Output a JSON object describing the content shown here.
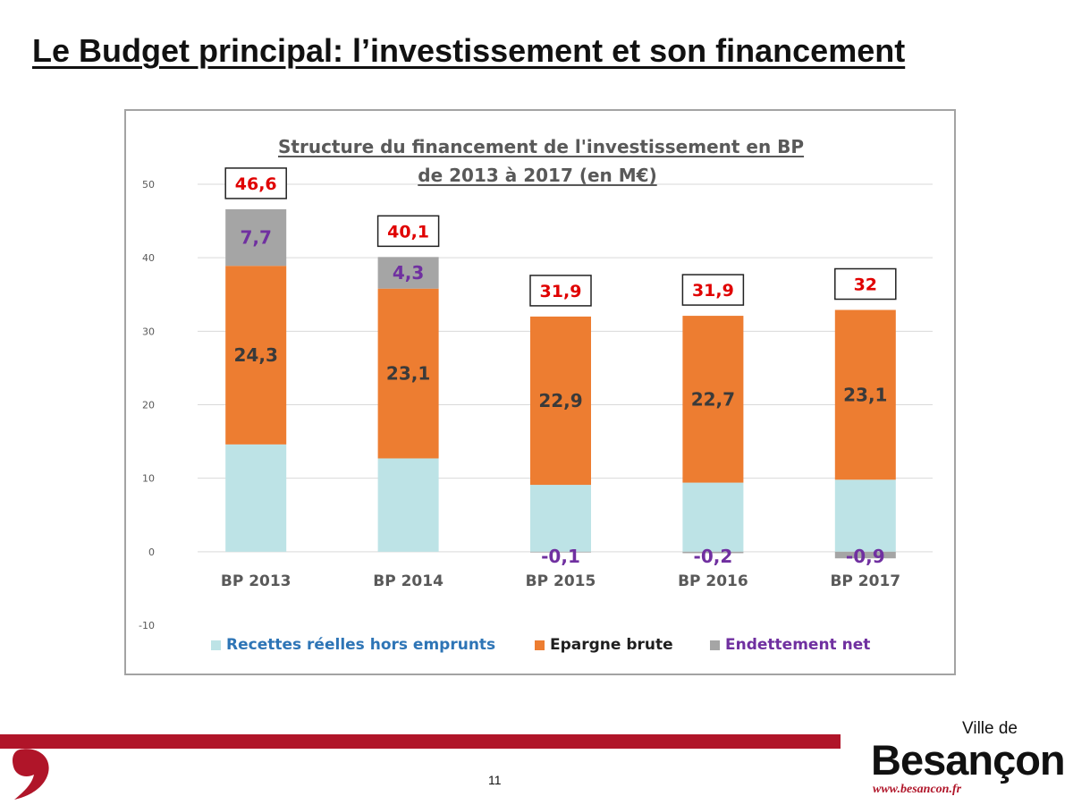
{
  "slide": {
    "title": "Le Budget principal: l’investissement et son financement",
    "page_number": "11"
  },
  "logo": {
    "small": "Ville de",
    "main": "Besançon",
    "url": "www.besancon.fr"
  },
  "colors": {
    "recettes": "#bde3e6",
    "epargne": "#ed7d31",
    "endettement": "#a5a5a5",
    "total_label": "#e00000",
    "endettement_label": "#7030a0",
    "recettes_legend": "#2e75b6",
    "gridline": "#d9d9d9",
    "brand_red": "#b01529"
  },
  "chart_data": {
    "type": "bar",
    "stacked": true,
    "title": "Structure du financement de l'investissement en BP",
    "subtitle": "de 2013 à 2017 (en M€)",
    "categories": [
      "BP 2013",
      "BP 2014",
      "BP 2015",
      "BP 2016",
      "BP 2017"
    ],
    "series": [
      {
        "name": "Recettes réelles hors emprunts",
        "values": [
          14.6,
          12.7,
          9.1,
          9.4,
          9.8
        ],
        "labels": [
          "",
          "",
          "",
          "",
          ""
        ]
      },
      {
        "name": "Epargne brute",
        "values": [
          24.3,
          23.1,
          22.9,
          22.7,
          23.1
        ],
        "labels": [
          "24,3",
          "23,1",
          "22,9",
          "22,7",
          "23,1"
        ]
      },
      {
        "name": "Endettement net",
        "values": [
          7.7,
          4.3,
          -0.1,
          -0.2,
          -0.9
        ],
        "labels": [
          "7,7",
          "4,3",
          "-0,1",
          "-0,2",
          "-0,9"
        ]
      }
    ],
    "totals": [
      "46,6",
      "40,1",
      "31,9",
      "31,9",
      "32"
    ],
    "ylim": [
      -10,
      50
    ],
    "yticks": [
      -10,
      0,
      10,
      20,
      30,
      40,
      50
    ],
    "grid": true,
    "legend": "bottom"
  }
}
